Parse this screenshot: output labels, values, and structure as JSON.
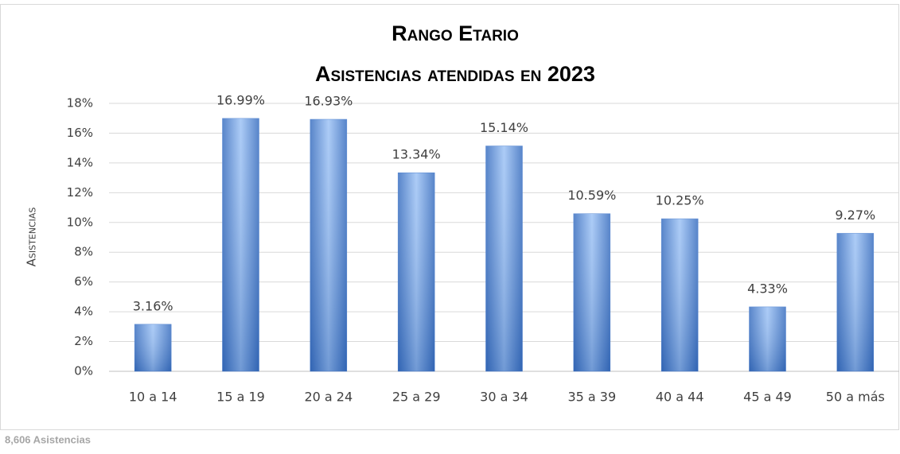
{
  "chart_data": {
    "type": "bar",
    "title": "Rango Etario",
    "subtitle": "Asistencias atendidas en 2023",
    "y_label": "Asistencias",
    "note": "8,606 Asistencias",
    "categories": [
      "10 a 14",
      "15 a 19",
      "20 a 24",
      "25 a 29",
      "30 a 34",
      "35 a 39",
      "40 a 44",
      "45 a 49",
      "50 a más"
    ],
    "values": [
      3.16,
      16.99,
      16.93,
      13.34,
      15.14,
      10.59,
      10.25,
      4.33,
      9.27
    ],
    "value_labels": [
      "3.16%",
      "16.99%",
      "16.93%",
      "13.34%",
      "15.14%",
      "10.59%",
      "10.25%",
      "4.33%",
      "9.27%"
    ],
    "color": "#4a7fcf",
    "ylim": [
      0,
      18
    ],
    "yticks": [
      {
        "value": 0,
        "label": "0%"
      },
      {
        "value": 2,
        "label": "2%"
      },
      {
        "value": 4,
        "label": "4%"
      },
      {
        "value": 6,
        "label": "6%"
      },
      {
        "value": 8,
        "label": "8%"
      },
      {
        "value": 10,
        "label": "10%"
      },
      {
        "value": 12,
        "label": "12%"
      },
      {
        "value": 14,
        "label": "14%"
      },
      {
        "value": 16,
        "label": "16%"
      },
      {
        "value": 18,
        "label": "18%"
      }
    ],
    "grid": true
  }
}
